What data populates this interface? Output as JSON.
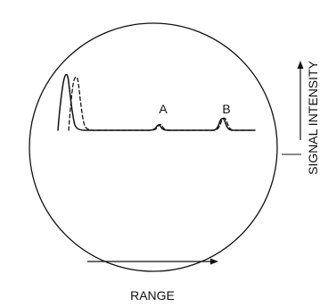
{
  "scope": {
    "peak_labels": [
      "A",
      "B"
    ]
  },
  "axes": {
    "horizontal_label": "RANGE",
    "vertical_label": "SIGNAL INTENSITY"
  },
  "colors": {
    "ink": "#111111",
    "background": "#ffffff"
  }
}
